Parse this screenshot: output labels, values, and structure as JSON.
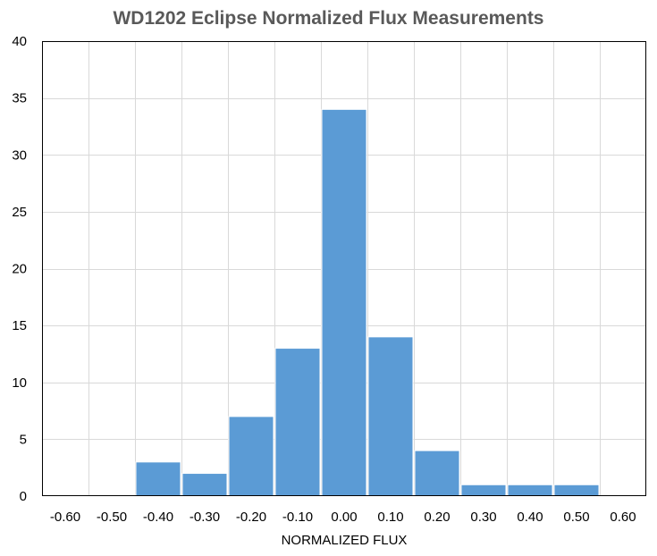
{
  "chart_data": {
    "type": "bar",
    "title": "WD1202 Eclipse Normalized Flux Measurements",
    "xlabel": "NORMALIZED FLUX",
    "ylabel": "",
    "x_ticks": [
      "-0.60",
      "-0.50",
      "-0.40",
      "-0.30",
      "-0.20",
      "-0.10",
      "0.00",
      "0.10",
      "0.20",
      "0.30",
      "0.40",
      "0.50",
      "0.60"
    ],
    "y_ticks": [
      "0",
      "5",
      "10",
      "15",
      "20",
      "25",
      "30",
      "35",
      "40"
    ],
    "xlim": [
      -0.65,
      0.65
    ],
    "ylim": [
      0,
      40
    ],
    "bin_width": 0.1,
    "bins": [
      {
        "x": -0.6,
        "count": 0
      },
      {
        "x": -0.5,
        "count": 0
      },
      {
        "x": -0.4,
        "count": 3
      },
      {
        "x": -0.3,
        "count": 2
      },
      {
        "x": -0.2,
        "count": 7
      },
      {
        "x": -0.1,
        "count": 13
      },
      {
        "x": 0.0,
        "count": 34
      },
      {
        "x": 0.1,
        "count": 14
      },
      {
        "x": 0.2,
        "count": 4
      },
      {
        "x": 0.3,
        "count": 1
      },
      {
        "x": 0.4,
        "count": 1
      },
      {
        "x": 0.5,
        "count": 1
      },
      {
        "x": 0.6,
        "count": 0
      }
    ],
    "grid": true,
    "bar_color": "#5B9BD5",
    "grid_color": "#D9D9D9"
  }
}
